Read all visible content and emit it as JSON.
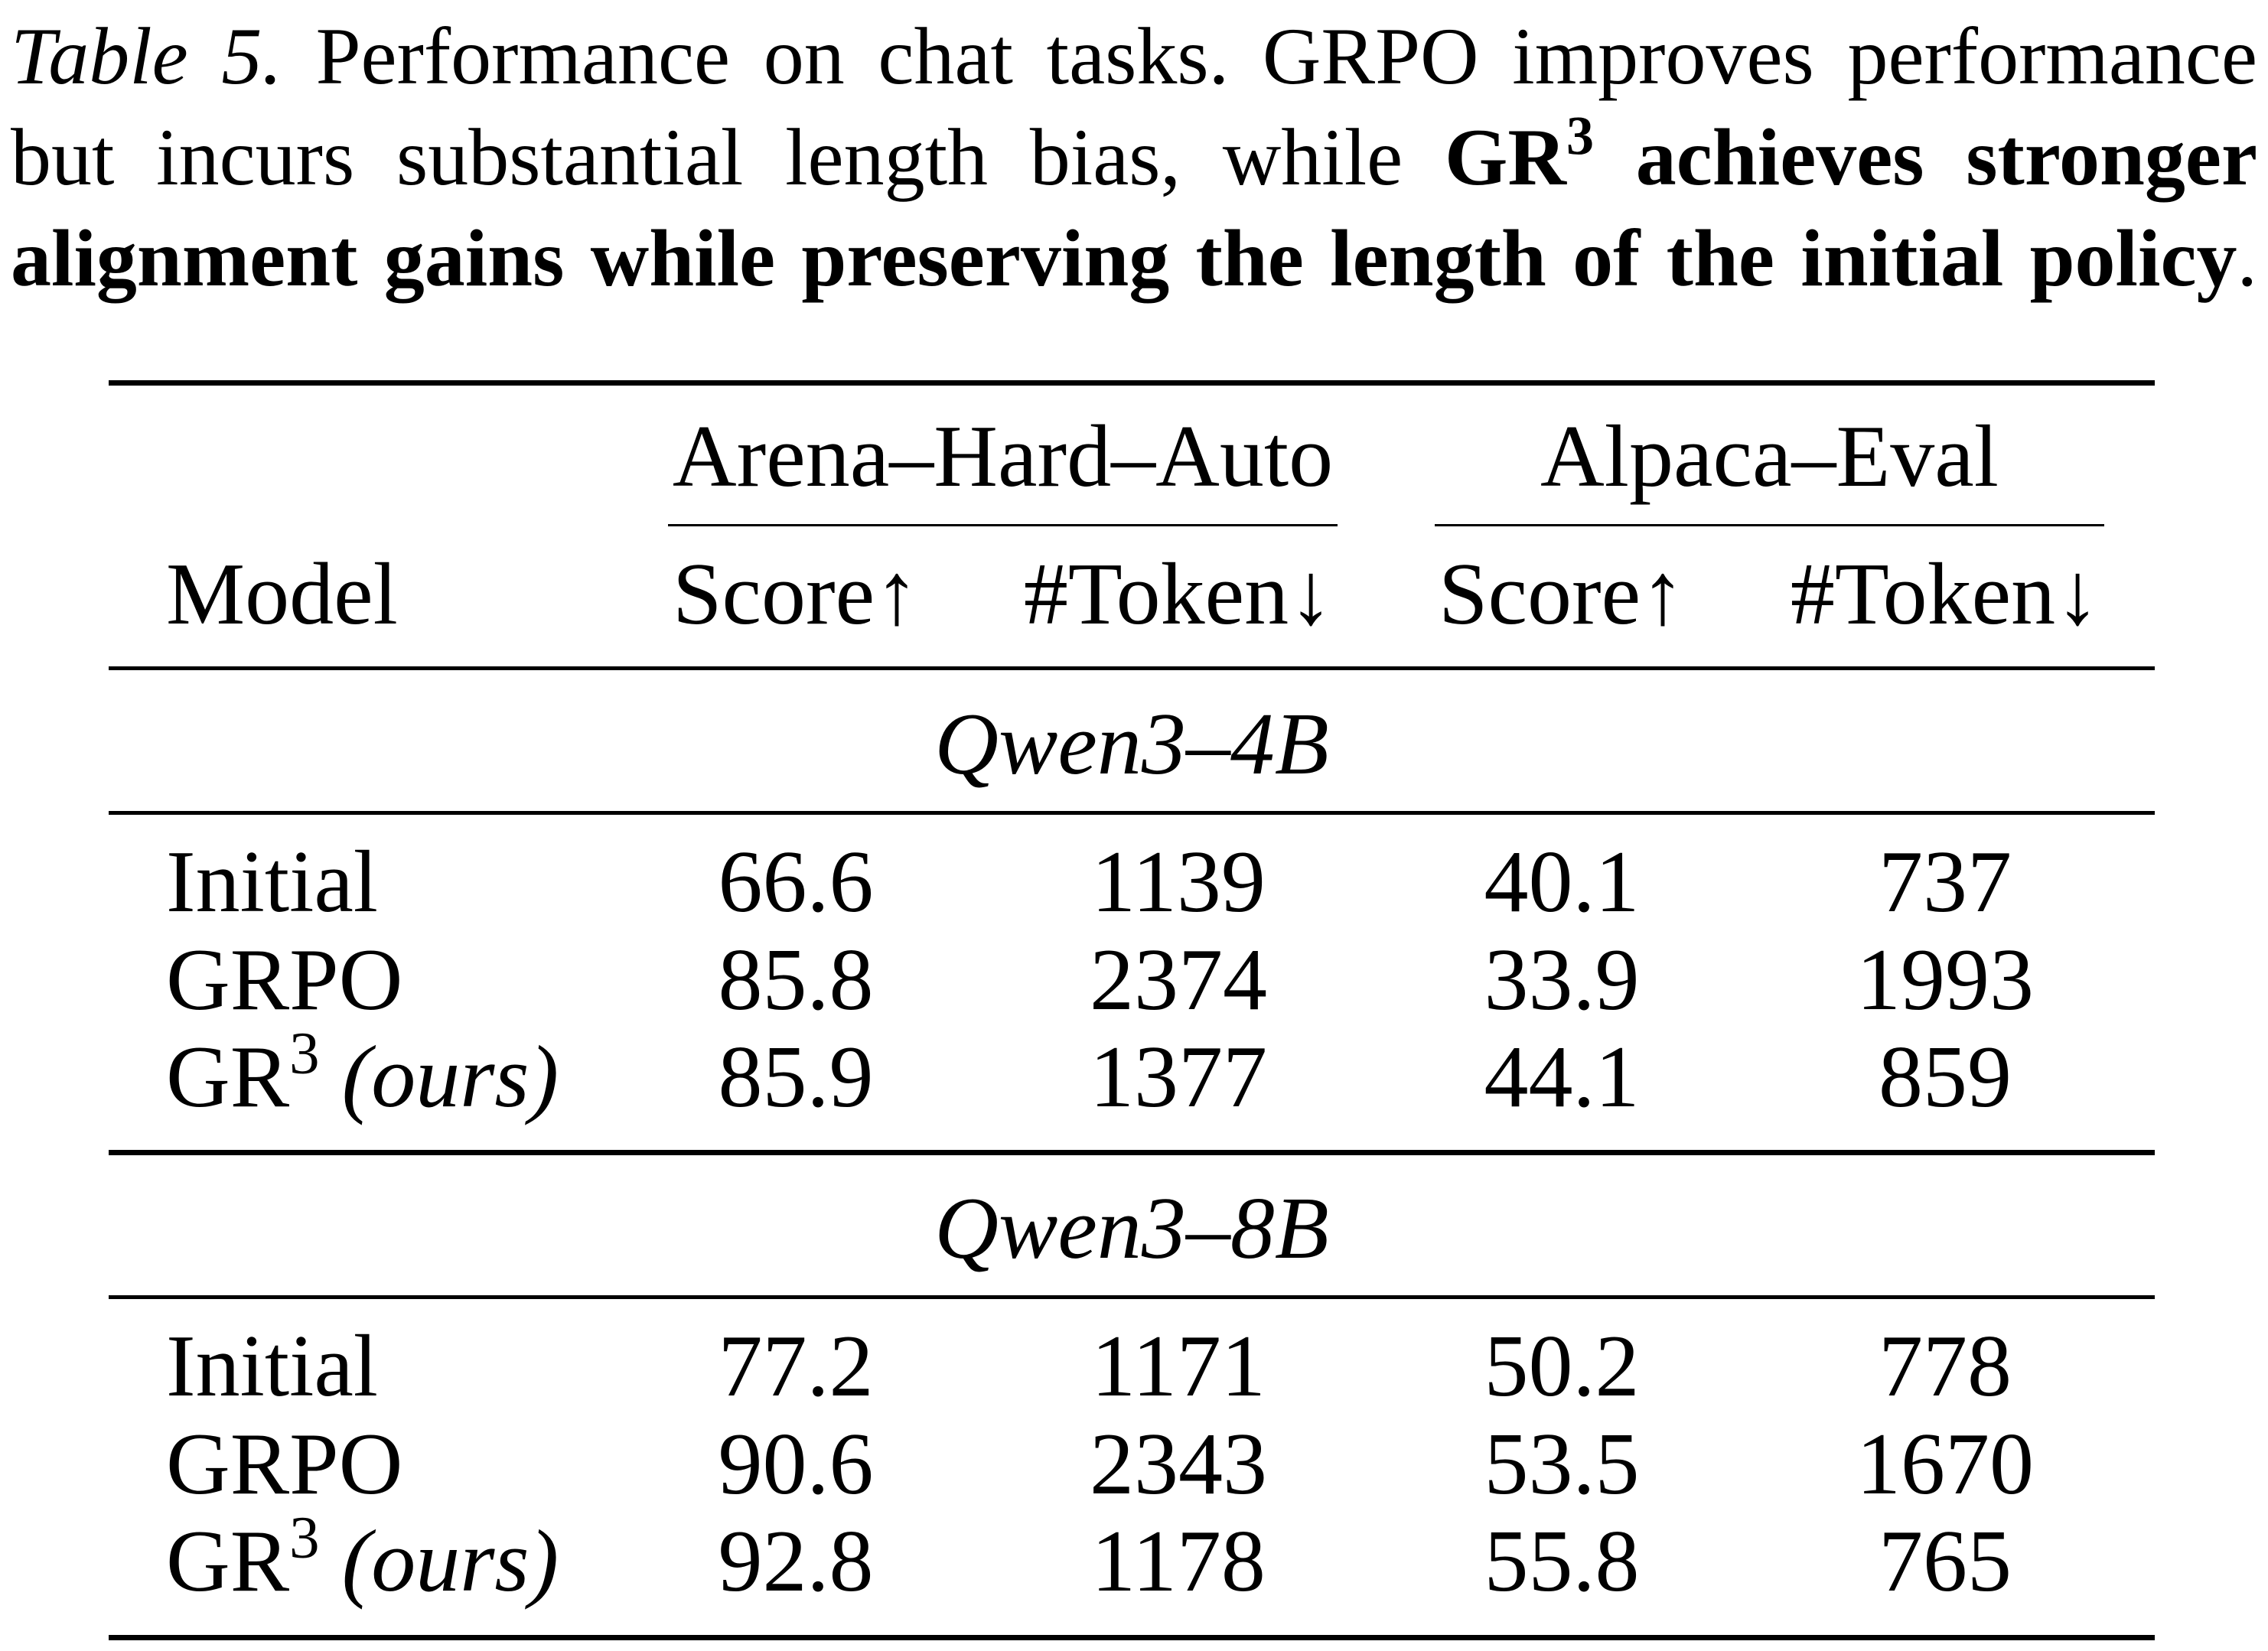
{
  "caption": {
    "label": "Table 5.",
    "text": " Performance on chat tasks. GRPO improves performance but incurs substantial length bias, while ",
    "bold": "GR",
    "bold_sup": "3",
    "bold_text": " achieves stronger alignment gains while preserving the length of the initial policy",
    "end": "."
  },
  "table": {
    "groups": [
      "Arena–Hard–Auto",
      "Alpaca–Eval"
    ],
    "columns": [
      "Model",
      "Score↑",
      "#Token↓",
      "Score↑",
      "#Token↓"
    ],
    "sections": [
      {
        "title": "Qwen3–4B",
        "rows": [
          {
            "model": "Initial",
            "values": [
              66.6,
              1139,
              40.1,
              737
            ]
          },
          {
            "model": "GRPO",
            "values": [
              85.8,
              2374,
              33.9,
              1993
            ]
          },
          {
            "model": "GR",
            "model_sup": "3",
            "model_note": "(ours)",
            "values": [
              85.9,
              1377,
              44.1,
              859
            ]
          }
        ]
      },
      {
        "title": "Qwen3–8B",
        "rows": [
          {
            "model": "Initial",
            "values": [
              77.2,
              1171,
              50.2,
              778
            ]
          },
          {
            "model": "GRPO",
            "values": [
              90.6,
              2343,
              53.5,
              1670
            ]
          },
          {
            "model": "GR",
            "model_sup": "3",
            "model_note": "(ours)",
            "values": [
              92.8,
              1178,
              55.8,
              765
            ]
          }
        ]
      }
    ]
  }
}
